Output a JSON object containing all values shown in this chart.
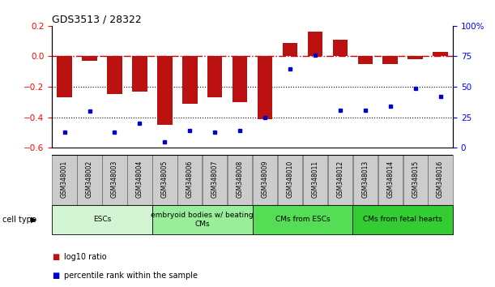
{
  "title": "GDS3513 / 28322",
  "samples": [
    "GSM348001",
    "GSM348002",
    "GSM348003",
    "GSM348004",
    "GSM348005",
    "GSM348006",
    "GSM348007",
    "GSM348008",
    "GSM348009",
    "GSM348010",
    "GSM348011",
    "GSM348012",
    "GSM348013",
    "GSM348014",
    "GSM348015",
    "GSM348016"
  ],
  "log10_ratio": [
    -0.27,
    -0.03,
    -0.25,
    -0.23,
    -0.45,
    -0.31,
    -0.27,
    -0.3,
    -0.41,
    0.09,
    0.16,
    0.11,
    -0.05,
    -0.05,
    -0.02,
    0.03
  ],
  "percentile_rank": [
    13,
    30,
    13,
    20,
    5,
    14,
    13,
    14,
    25,
    65,
    76,
    31,
    31,
    34,
    49,
    42
  ],
  "ylim_left": [
    -0.6,
    0.2
  ],
  "ylim_right": [
    0,
    100
  ],
  "dotted_lines": [
    -0.2,
    -0.4
  ],
  "bar_color": "#bb1111",
  "dot_color": "#0000cc",
  "hline_color": "#cc0000",
  "cell_type_groups": [
    {
      "label": "ESCs",
      "start": 0,
      "end": 3,
      "color": "#d4f5d4"
    },
    {
      "label": "embryoid bodies w/ beating\nCMs",
      "start": 4,
      "end": 7,
      "color": "#99ee99"
    },
    {
      "label": "CMs from ESCs",
      "start": 8,
      "end": 11,
      "color": "#55dd55"
    },
    {
      "label": "CMs from fetal hearts",
      "start": 12,
      "end": 15,
      "color": "#33cc33"
    }
  ],
  "cell_type_label": "cell type",
  "legend_items": [
    {
      "color": "#bb1111",
      "label": "log10 ratio"
    },
    {
      "color": "#0000cc",
      "label": "percentile rank within the sample"
    }
  ],
  "tick_fontsize": 7.5,
  "bar_width": 0.6
}
